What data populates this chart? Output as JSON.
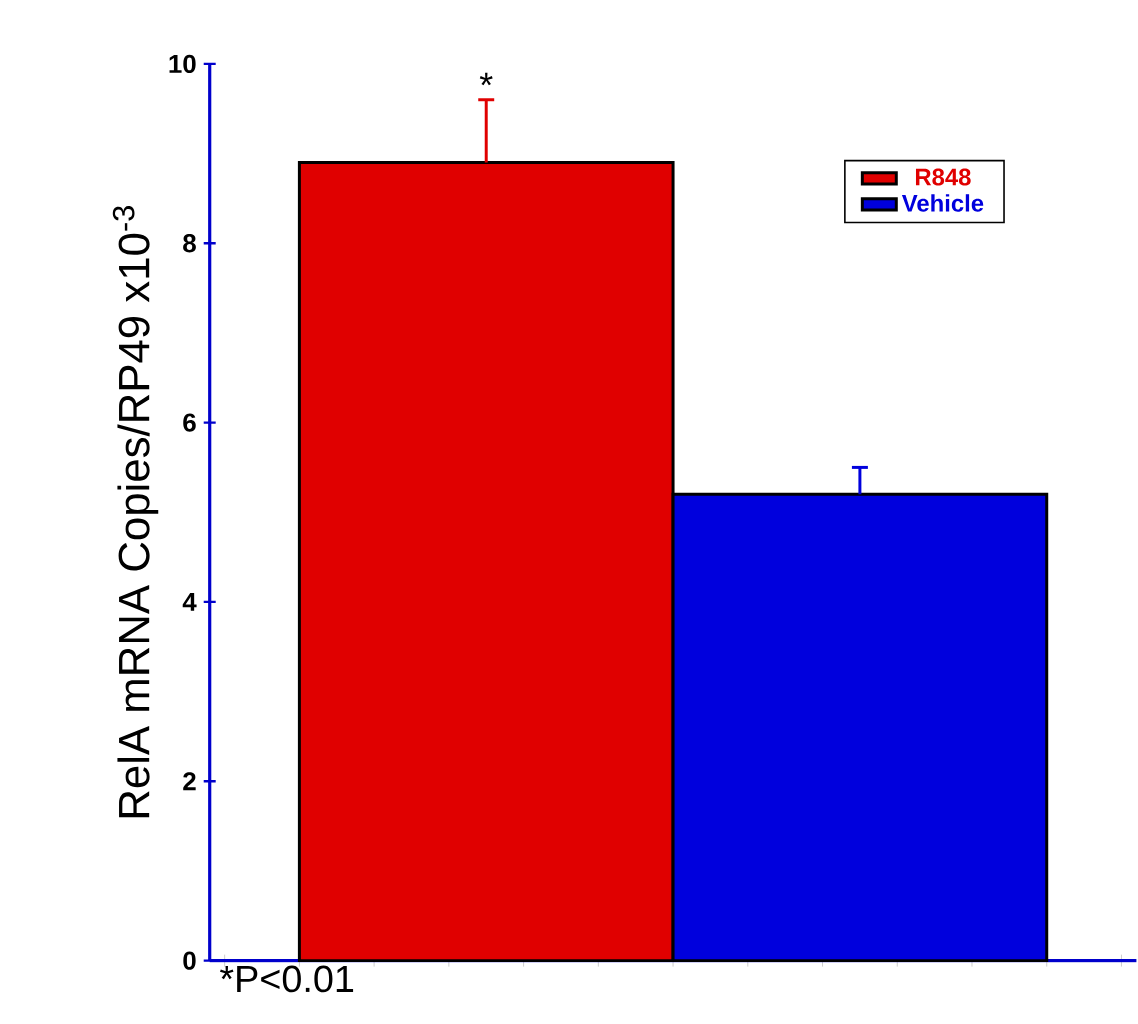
{
  "chart_data": {
    "type": "bar",
    "ylabel": "RelA mRNA Copies/RP49 x10$^{-3}$",
    "categories": [
      null
    ],
    "series": [
      {
        "name": "R848",
        "color": "#e00000",
        "values": [
          8.9
        ],
        "errors": [
          0.7
        ]
      },
      {
        "name": "Vehicle",
        "color": "#0000dd",
        "values": [
          5.2
        ],
        "errors": [
          0.3
        ]
      }
    ],
    "ylim": [
      0,
      10
    ],
    "yticks": [
      0,
      2,
      4,
      6,
      8,
      10
    ],
    "legend": "top right",
    "annotations": [
      "*",
      "*P<0.01"
    ]
  }
}
